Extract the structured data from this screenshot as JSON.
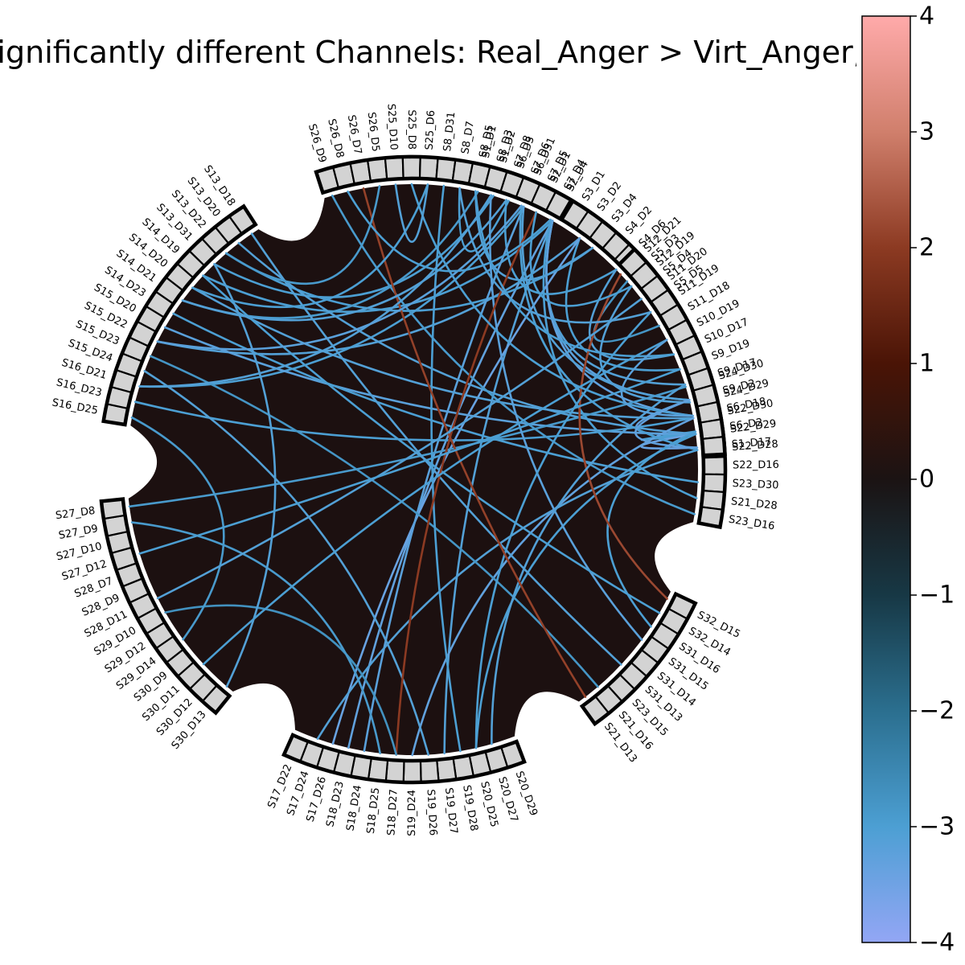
{
  "chart_data": {
    "type": "chord",
    "title": "Significantly different Channels: Real_Anger > Virt_Anger, plot",
    "colorbar": {
      "min": -4,
      "max": 4,
      "ticks": [
        "−4",
        "−3",
        "−2",
        "−1",
        "0",
        "1",
        "2",
        "3",
        "4"
      ],
      "tick_values": [
        -4,
        -3,
        -2,
        -1,
        0,
        1,
        2,
        3,
        4
      ],
      "colormap_stops": [
        {
          "v": -4,
          "color": "#93a6f5"
        },
        {
          "v": -3,
          "color": "#4c9fd3"
        },
        {
          "v": -2,
          "color": "#2b6f8f"
        },
        {
          "v": -1,
          "color": "#173845"
        },
        {
          "v": 0,
          "color": "#1b1313"
        },
        {
          "v": 1,
          "color": "#4a1406"
        },
        {
          "v": 2,
          "color": "#8c3a22"
        },
        {
          "v": 3,
          "color": "#d07f6c"
        },
        {
          "v": 4,
          "color": "#ffaaaa"
        }
      ]
    },
    "background_color": "#1c1010",
    "groups": [
      {
        "name": "group-1",
        "nodes": [
          "S1_D1",
          "S1_D2",
          "S6_D3",
          "S6_D31",
          "S2_D1",
          "S2_D4",
          "S3_D1",
          "S3_D2",
          "S3_D4",
          "S4_D2",
          "S4_D6",
          "S5_D3",
          "S5_D4",
          "S5_D5"
        ]
      },
      {
        "name": "group-2",
        "nodes": [
          "S24_D30",
          "S24_D29",
          "S22_D30",
          "S22_D29",
          "S22_D28",
          "S22_D16",
          "S23_D30",
          "S21_D28",
          "S23_D16"
        ]
      },
      {
        "name": "group-3",
        "nodes": [
          "S32_D15",
          "S32_D14",
          "S31_D16",
          "S31_D15",
          "S31_D14",
          "S31_D13",
          "S23_D15",
          "S21_D16",
          "S21_D13"
        ]
      },
      {
        "name": "group-4",
        "nodes": [
          "S20_D29",
          "S20_D27",
          "S20_D25",
          "S19_D28",
          "S19_D27",
          "S19_D26",
          "S19_D24",
          "S18_D27",
          "S18_D25",
          "S18_D24",
          "S18_D23",
          "S17_D26",
          "S17_D24",
          "S17_D22"
        ]
      },
      {
        "name": "group-5",
        "nodes": [
          "S30_D13",
          "S30_D12",
          "S30_D11",
          "S30_D9",
          "S29_D14",
          "S29_D12",
          "S29_D10",
          "S28_D11",
          "S28_D9",
          "S28_D7",
          "S27_D12",
          "S27_D10",
          "S27_D9",
          "S27_D8"
        ]
      },
      {
        "name": "group-6",
        "nodes": [
          "S16_D25",
          "S16_D23",
          "S16_D21",
          "S15_D24",
          "S15_D23",
          "S15_D22",
          "S15_D20",
          "S14_D23",
          "S14_D21",
          "S14_D20",
          "S14_D19",
          "S13_D31",
          "S13_D22",
          "S13_D20",
          "S13_D18"
        ]
      },
      {
        "name": "group-7",
        "nodes": [
          "S26_D9",
          "S26_D8",
          "S26_D7",
          "S26_D5",
          "S25_D10",
          "S25_D8",
          "S25_D6",
          "S8_D31",
          "S8_D7",
          "S8_D5",
          "S8_D3",
          "S7_D8",
          "S7_D6",
          "S7_D5",
          "S7_D4"
        ]
      },
      {
        "name": "group-8",
        "nodes": [
          "S12_D21",
          "S12_D19",
          "S11_D20",
          "S11_D19",
          "S11_D18",
          "S10_D19",
          "S10_D17",
          "S9_D19",
          "S9_D17",
          "S9_D2",
          "S6_D18",
          "S6_D2",
          "S1_D17"
        ]
      }
    ],
    "links": [
      {
        "source": "S2_D4",
        "target": "S9_D2",
        "value": -3.2
      },
      {
        "source": "S2_D4",
        "target": "S9_D17",
        "value": -3.1
      },
      {
        "source": "S2_D4",
        "target": "S6_D18",
        "value": -3.3
      },
      {
        "source": "S2_D4",
        "target": "S14_D19",
        "value": -3.0
      },
      {
        "source": "S2_D4",
        "target": "S19_D27",
        "value": -3.1
      },
      {
        "source": "S2_D4",
        "target": "S18_D23",
        "value": -3.3
      },
      {
        "source": "S3_D2",
        "target": "S9_D19",
        "value": -3.0
      },
      {
        "source": "S3_D2",
        "target": "S15_D22",
        "value": -3.1
      },
      {
        "source": "S3_D2",
        "target": "S17_D26",
        "value": -3.4
      },
      {
        "source": "S3_D4",
        "target": "S13_D22",
        "value": -3.0
      },
      {
        "source": "S3_D4",
        "target": "S8_D5",
        "value": -3.1
      },
      {
        "source": "S4_D6",
        "target": "S7_D8",
        "value": -3.0
      },
      {
        "source": "S4_D6",
        "target": "S10_D17",
        "value": -3.1
      },
      {
        "source": "S5_D3",
        "target": "S11_D18",
        "value": -2.8
      },
      {
        "source": "S6_D3",
        "target": "S8_D7",
        "value": -3.0
      },
      {
        "source": "S6_D31",
        "target": "S9_D2",
        "value": -3.1
      },
      {
        "source": "S6_D31",
        "target": "S16_D21",
        "value": -3.0
      },
      {
        "source": "S6_D31",
        "target": "S18_D24",
        "value": -3.2
      },
      {
        "source": "S1_D2",
        "target": "S13_D31",
        "value": -3.0
      },
      {
        "source": "S1_D1",
        "target": "S14_D21",
        "value": -2.9
      },
      {
        "source": "S22_D29",
        "target": "S9_D2",
        "value": -3.3
      },
      {
        "source": "S22_D29",
        "target": "S6_D2",
        "value": -3.0
      },
      {
        "source": "S22_D29",
        "target": "S1_D17",
        "value": -3.4
      },
      {
        "source": "S22_D29",
        "target": "S13_D20",
        "value": -3.1
      },
      {
        "source": "S22_D29",
        "target": "S15_D20",
        "value": -3.2
      },
      {
        "source": "S22_D29",
        "target": "S20_D25",
        "value": -3.0
      },
      {
        "source": "S22_D30",
        "target": "S14_D20",
        "value": -3.1
      },
      {
        "source": "S22_D30",
        "target": "S16_D23",
        "value": -3.0
      },
      {
        "source": "S22_D30",
        "target": "S19_D24",
        "value": -3.3
      },
      {
        "source": "S22_D28",
        "target": "S17_D24",
        "value": -3.1
      },
      {
        "source": "S22_D28",
        "target": "S7_D6",
        "value": -3.0
      },
      {
        "source": "S24_D29",
        "target": "S12_D19",
        "value": -3.1
      },
      {
        "source": "S24_D30",
        "target": "S27_D8",
        "value": -2.9
      },
      {
        "source": "S23_D30",
        "target": "S14_D23",
        "value": -3.0
      },
      {
        "source": "S21_D28",
        "target": "S7_D4",
        "value": -3.0
      },
      {
        "source": "S23_D16",
        "target": "S26_D9",
        "value": -2.9
      },
      {
        "source": "S31_D16",
        "target": "S6_D2",
        "value": -3.0
      },
      {
        "source": "S31_D15",
        "target": "S8_D3",
        "value": -3.2
      },
      {
        "source": "S32_D14",
        "target": "S14_D19",
        "value": -3.0
      },
      {
        "source": "S31_D13",
        "target": "S13_D18",
        "value": -3.1
      },
      {
        "source": "S21_D16",
        "target": "S15_D23",
        "value": -2.8
      },
      {
        "source": "S32_D15",
        "target": "S12_D21",
        "value": 2.2
      },
      {
        "source": "S20_D27",
        "target": "S9_D17",
        "value": -3.1
      },
      {
        "source": "S20_D25",
        "target": "S11_D19",
        "value": -3.0
      },
      {
        "source": "S19_D28",
        "target": "S8_D31",
        "value": -3.0
      },
      {
        "source": "S19_D26",
        "target": "S15_D24",
        "value": -3.1
      },
      {
        "source": "S18_D27",
        "target": "S7_D5",
        "value": 2.0
      },
      {
        "source": "S18_D27",
        "target": "S29_D10",
        "value": -2.7
      },
      {
        "source": "S18_D25",
        "target": "S27_D9",
        "value": -2.9
      },
      {
        "source": "S21_D13",
        "target": "S26_D7",
        "value": 2.1
      },
      {
        "source": "S30_D13",
        "target": "S13_D31",
        "value": -3.1
      },
      {
        "source": "S30_D11",
        "target": "S10_D19",
        "value": -3.0
      },
      {
        "source": "S29_D14",
        "target": "S16_D25",
        "value": -2.9
      },
      {
        "source": "S28_D11",
        "target": "S11_D20",
        "value": -3.1
      },
      {
        "source": "S27_D12",
        "target": "S9_D19",
        "value": -3.0
      },
      {
        "source": "S16_D21",
        "target": "S8_D3",
        "value": -3.1
      },
      {
        "source": "S15_D22",
        "target": "S7_D6",
        "value": -3.2
      },
      {
        "source": "S14_D20",
        "target": "S25_D6",
        "value": -3.0
      },
      {
        "source": "S13_D22",
        "target": "S26_D5",
        "value": -2.9
      },
      {
        "source": "S14_D21",
        "target": "S7_D8",
        "value": -3.1
      },
      {
        "source": "S25_D8",
        "target": "S6_D18",
        "value": -3.0
      },
      {
        "source": "S25_D10",
        "target": "S25_D6",
        "value": -3.1
      },
      {
        "source": "S26_D8",
        "target": "S7_D4",
        "value": -3.0
      },
      {
        "source": "S8_D7",
        "target": "S11_D19",
        "value": -3.1
      },
      {
        "source": "S8_D5",
        "target": "S10_D17",
        "value": -3.0
      },
      {
        "source": "S7_D5",
        "target": "S12_D19",
        "value": -3.0
      },
      {
        "source": "S9_D2",
        "target": "S1_D17",
        "value": -3.3
      },
      {
        "source": "S6_D18",
        "target": "S10_D19",
        "value": -3.2
      }
    ]
  }
}
